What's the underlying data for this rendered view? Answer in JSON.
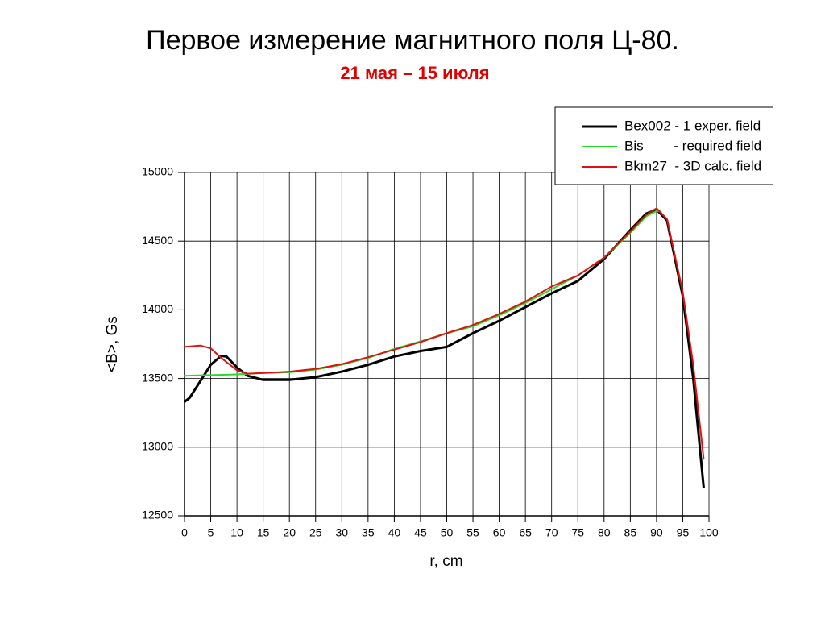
{
  "chart_data": {
    "type": "line",
    "title": "Первое измерение магнитного поля Ц-80.",
    "subtitle": "21 мая – 15 июля",
    "x_label": "r, cm",
    "y_label": "<B>, Gs",
    "xlim": [
      0,
      100
    ],
    "ylim": [
      12500,
      15000
    ],
    "xticks": [
      0,
      5,
      10,
      15,
      20,
      25,
      30,
      35,
      40,
      45,
      50,
      55,
      60,
      65,
      70,
      75,
      80,
      85,
      90,
      95,
      100
    ],
    "yticks": [
      12500,
      13000,
      13500,
      14000,
      14500,
      15000
    ],
    "grid": true,
    "legend": "top-right",
    "series": [
      {
        "name": "Bex002 - 1 exper. field",
        "color": "#000000",
        "x": [
          0,
          1,
          3,
          5,
          7,
          8,
          10,
          12,
          15,
          20,
          25,
          30,
          35,
          40,
          45,
          50,
          55,
          60,
          65,
          70,
          75,
          80,
          85,
          88,
          90,
          92,
          95,
          97,
          99
        ],
        "values": [
          13330,
          13360,
          13480,
          13600,
          13665,
          13660,
          13580,
          13520,
          13490,
          13490,
          13510,
          13550,
          13600,
          13660,
          13700,
          13730,
          13830,
          13920,
          14020,
          14120,
          14210,
          14370,
          14580,
          14700,
          14730,
          14650,
          14100,
          13500,
          12700
        ]
      },
      {
        "name": "Bis        - required field",
        "color": "#22dd22",
        "x": [
          0,
          5,
          10,
          15,
          20,
          25,
          30,
          35,
          40,
          45,
          50,
          55,
          60,
          65,
          70,
          75,
          80,
          85,
          88,
          90,
          91
        ],
        "values": [
          13520,
          13525,
          13530,
          13540,
          13545,
          13565,
          13600,
          13650,
          13715,
          13770,
          13830,
          13880,
          13960,
          14050,
          14150,
          14250,
          14380,
          14560,
          14680,
          14720,
          14715
        ]
      },
      {
        "name": "Bkm27  - 3D calc. field",
        "color": "#dd1111",
        "x": [
          0,
          3,
          5,
          7,
          10,
          12,
          15,
          20,
          25,
          30,
          35,
          40,
          45,
          50,
          55,
          60,
          65,
          70,
          75,
          80,
          85,
          88,
          90,
          92,
          95,
          97,
          99
        ],
        "values": [
          13730,
          13740,
          13720,
          13650,
          13560,
          13535,
          13540,
          13550,
          13570,
          13605,
          13655,
          13710,
          13765,
          13830,
          13890,
          13970,
          14060,
          14170,
          14250,
          14380,
          14570,
          14690,
          14740,
          14660,
          14130,
          13600,
          12910
        ]
      }
    ]
  }
}
